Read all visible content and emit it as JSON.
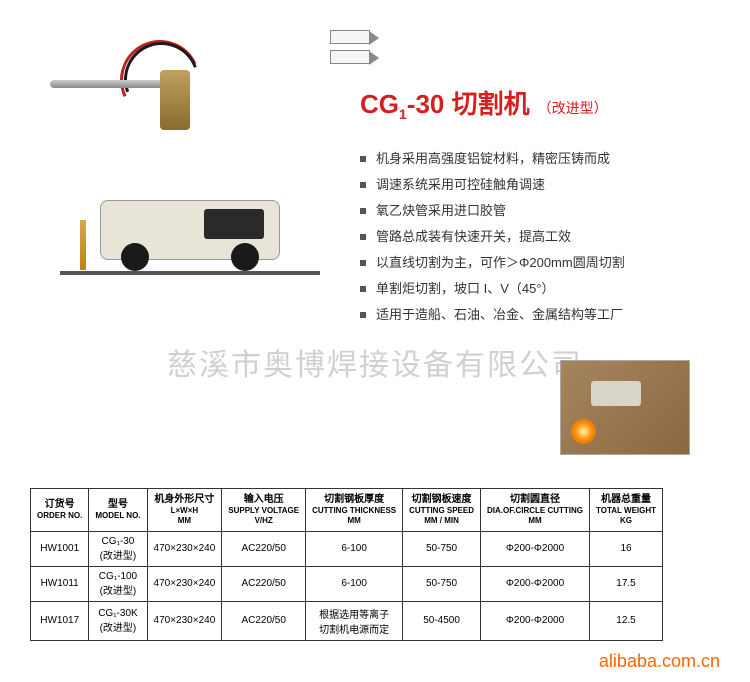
{
  "title": {
    "prefix": "CG",
    "sub": "1",
    "model": "-30 切割机",
    "variant": "（改进型）",
    "color": "#d42020",
    "fontsize_main": 26,
    "fontsize_suffix": 14
  },
  "features": [
    "机身采用高强度铝锭材料，精密压铸而成",
    "调速系统采用可控硅触角调速",
    "氧乙炔管采用进口胶管",
    "管路总成装有快速开关，提高工效",
    "以直线切割为主，可作＞Φ200mm圆周切割",
    "单割炬切割，坡口 I、V（45°）",
    "适用于造船、石油、冶金、金属结构等工厂"
  ],
  "feature_style": {
    "bullet_color": "#555555",
    "text_color": "#333333",
    "fontsize": 13
  },
  "watermark_text": "慈溪市奥博焊接设备有限公司",
  "table": {
    "columns": [
      {
        "cn": "订货号",
        "en": "ORDER NO.",
        "unit": ""
      },
      {
        "cn": "型号",
        "en": "MODEL NO.",
        "unit": ""
      },
      {
        "cn": "机身外形尺寸",
        "en": "L×W×H",
        "unit": "MM"
      },
      {
        "cn": "输入电压",
        "en": "SUPPLY VOLTAGE",
        "unit": "V/HZ"
      },
      {
        "cn": "切割钢板厚度",
        "en": "CUTTING THICKNESS",
        "unit": "MM"
      },
      {
        "cn": "切割钢板速度",
        "en": "CUTTING SPEED",
        "unit": "MM / MIN"
      },
      {
        "cn": "切割圆直径",
        "en": "DIA.OF.CIRCLE CUTTING",
        "unit": "MM"
      },
      {
        "cn": "机器总重量",
        "en": "TOTAL WEIGHT",
        "unit": "KG"
      }
    ],
    "rows": [
      [
        "HW1001",
        "CG₁-30\n(改进型)",
        "470×230×240",
        "AC220/50",
        "6-100",
        "50-750",
        "Φ200-Φ2000",
        "16"
      ],
      [
        "HW1011",
        "CG₁-100\n(改进型)",
        "470×230×240",
        "AC220/50",
        "6-100",
        "50-750",
        "Φ200-Φ2000",
        "17.5"
      ],
      [
        "HW1017",
        "CG₁-30K\n(改进型)",
        "470×230×240",
        "AC220/50",
        "根据选用等离子\n切割机电源而定",
        "50-4500",
        "Φ200-Φ2000",
        "12.5"
      ]
    ],
    "border_color": "#333333",
    "fontsize_header": 10,
    "fontsize_en": 8,
    "fontsize_cell": 10
  },
  "footer": {
    "text": "alibaba.com.cn",
    "color": "#ff6600",
    "fontsize": 18
  },
  "colors": {
    "background": "#ffffff",
    "machine_body": "#e8e4d8",
    "hose_red": "#c02020",
    "hose_black": "#1a1a1a",
    "brass": "#b8860b",
    "watermark": "rgba(120,120,120,0.35)"
  }
}
